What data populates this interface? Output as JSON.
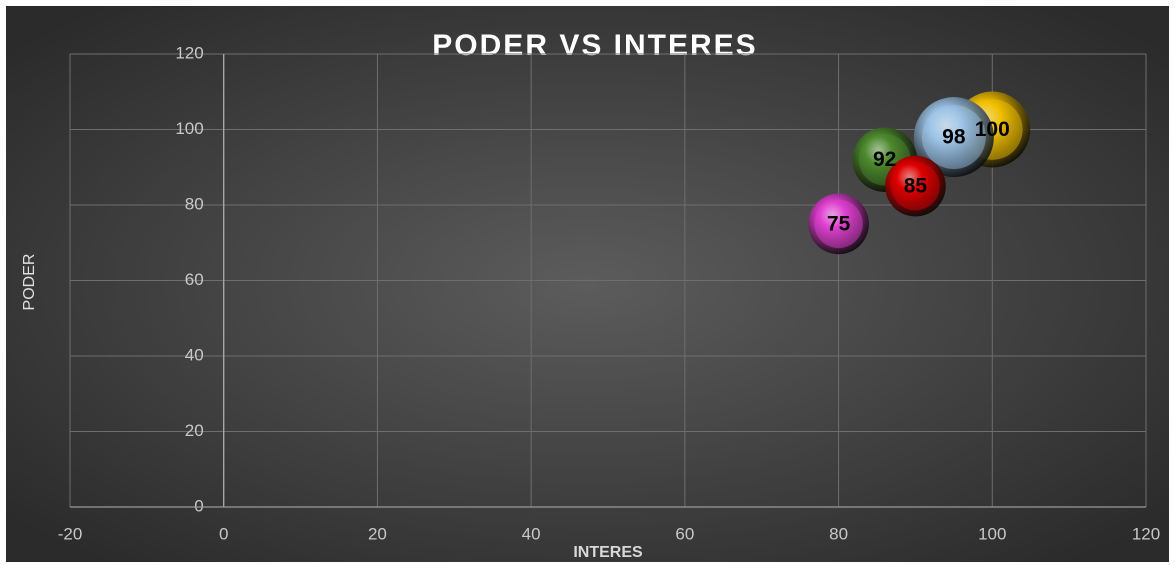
{
  "chart_data": {
    "type": "bubble",
    "title": "PODER VS INTERES",
    "x_label": "INTERES",
    "y_label": "PODER",
    "x": [
      100,
      95,
      86,
      90,
      80
    ],
    "values": [
      100,
      98,
      92,
      85,
      75
    ],
    "sizes": [
      36,
      40,
      26,
      23,
      23
    ],
    "colors": [
      "#f2c000",
      "#9cc3e6",
      "#4e8a2e",
      "#e00000",
      "#e040d0"
    ],
    "xlim": [
      -20,
      120
    ],
    "xticks": [
      -20,
      0,
      20,
      40,
      60,
      80,
      100,
      120
    ],
    "ylim": [
      0,
      120
    ],
    "yticks": [
      0,
      20,
      40,
      60,
      80,
      100,
      120
    ],
    "grid": true
  }
}
